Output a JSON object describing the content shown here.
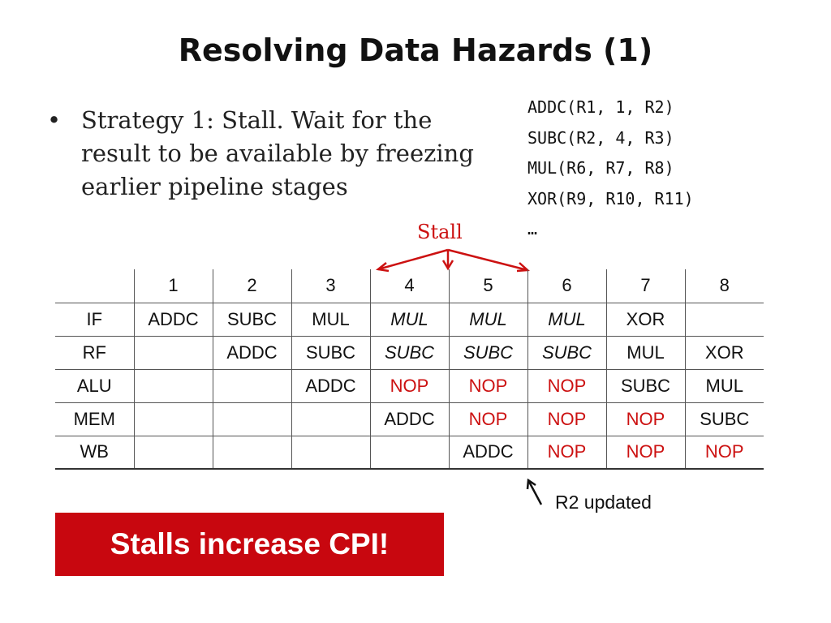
{
  "slide": {
    "title": "Resolving Data Hazards (1)",
    "bullet": {
      "marker": "•",
      "text": "Strategy 1: Stall. Wait for the result to be available by freezing earlier pipeline stages"
    },
    "code_lines": [
      "ADDC(R1, 1, R2)",
      "SUBC(R2, 4, R3)",
      "MUL(R6, R7, R8)",
      "XOR(R9, R10, R11)",
      "…"
    ],
    "stall_label": "Stall",
    "r2_note": "R2 updated",
    "banner": "Stalls increase CPI!",
    "colors": {
      "accent": "#cc1111",
      "banner_bg": "#c8070f",
      "text": "#111111"
    }
  },
  "pipeline": {
    "cycles": [
      "1",
      "2",
      "3",
      "4",
      "5",
      "6",
      "7",
      "8"
    ],
    "rows": [
      {
        "stage": "IF",
        "cells": [
          "ADDC",
          "SUBC",
          "MUL",
          "MUL",
          "MUL",
          "MUL",
          "XOR",
          ""
        ]
      },
      {
        "stage": "RF",
        "cells": [
          "",
          "ADDC",
          "SUBC",
          "SUBC",
          "SUBC",
          "SUBC",
          "MUL",
          "XOR"
        ]
      },
      {
        "stage": "ALU",
        "cells": [
          "",
          "",
          "ADDC",
          "NOP",
          "NOP",
          "NOP",
          "SUBC",
          "MUL"
        ]
      },
      {
        "stage": "MEM",
        "cells": [
          "",
          "",
          "",
          "ADDC",
          "NOP",
          "NOP",
          "NOP",
          "SUBC"
        ]
      },
      {
        "stage": "WB",
        "cells": [
          "",
          "",
          "",
          "",
          "ADDC",
          "NOP",
          "NOP",
          "NOP"
        ]
      }
    ]
  }
}
